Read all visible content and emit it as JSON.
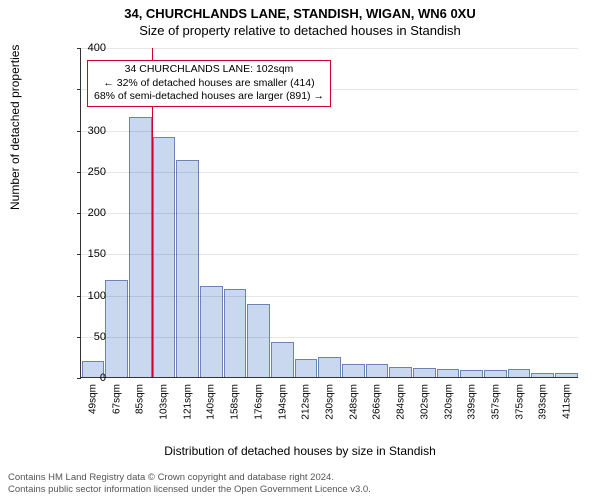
{
  "title_main": "34, CHURCHLANDS LANE, STANDISH, WIGAN, WN6 0XU",
  "title_sub": "Size of property relative to detached houses in Standish",
  "ylabel": "Number of detached properties",
  "xlabel": "Distribution of detached houses by size in Standish",
  "footer_line1": "Contains HM Land Registry data © Crown copyright and database right 2024.",
  "footer_line2": "Contains public sector information licensed under the Open Government Licence v3.0.",
  "chart": {
    "type": "histogram",
    "ylim": [
      0,
      400
    ],
    "ytick_step": 50,
    "bar_fill": "#c9d7ef",
    "bar_stroke": "#6b84b5",
    "grid_color": "#333333",
    "background": "#ffffff",
    "axis_fontsize": 11,
    "label_fontsize": 12,
    "title_fontsize": 13,
    "marker": {
      "x_index": 3,
      "color": "#d4002a",
      "annot_border": "#d4002a",
      "annot_lines": [
        "34 CHURCHLANDS LANE: 102sqm",
        "← 32% of detached houses are smaller (414)",
        "68% of semi-detached houses are larger (891) →"
      ]
    },
    "categories": [
      "49sqm",
      "67sqm",
      "85sqm",
      "103sqm",
      "121sqm",
      "140sqm",
      "158sqm",
      "176sqm",
      "194sqm",
      "212sqm",
      "230sqm",
      "248sqm",
      "266sqm",
      "284sqm",
      "302sqm",
      "320sqm",
      "339sqm",
      "357sqm",
      "375sqm",
      "393sqm",
      "411sqm"
    ],
    "values": [
      20,
      118,
      315,
      291,
      263,
      110,
      107,
      88,
      42,
      22,
      24,
      16,
      16,
      12,
      11,
      10,
      8,
      8,
      10,
      5,
      5
    ]
  }
}
